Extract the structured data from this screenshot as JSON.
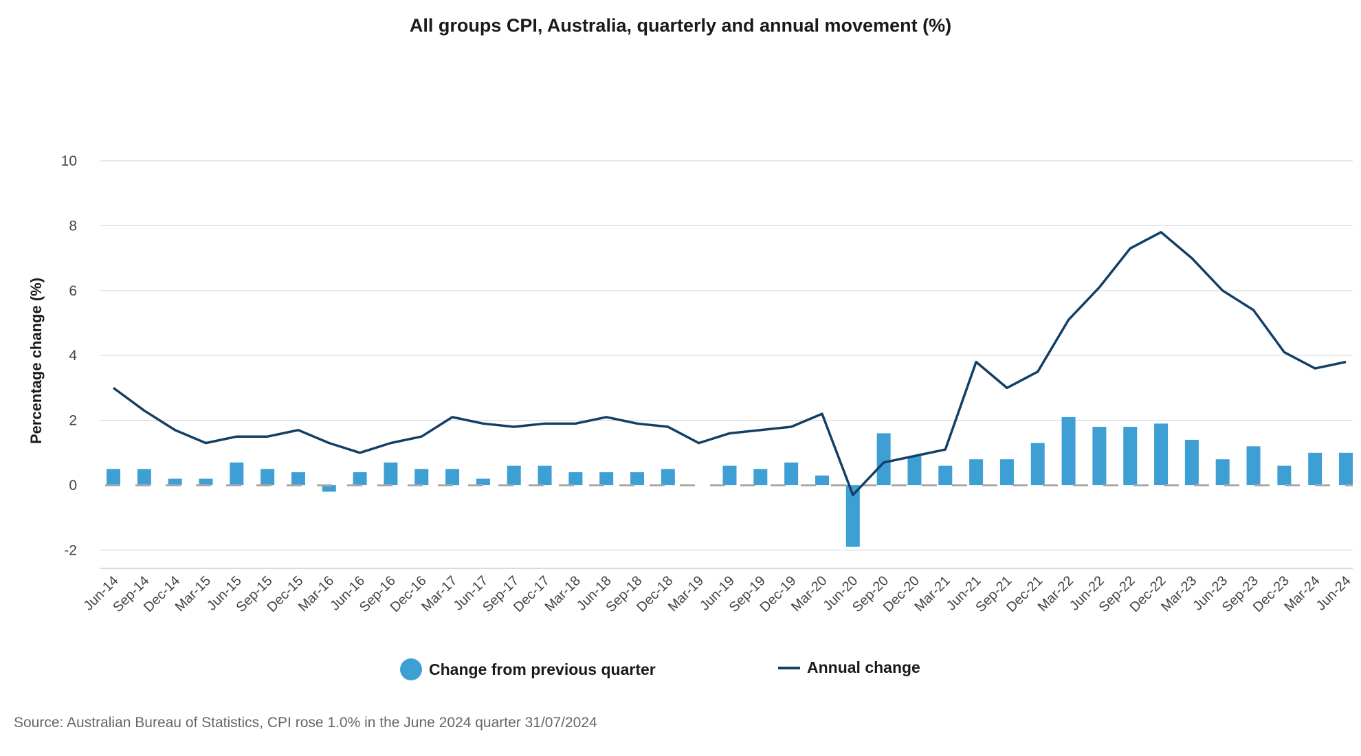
{
  "chart_data": {
    "type": "bar+line",
    "title": "All groups CPI, Australia, quarterly and annual movement (%)",
    "xlabel": "",
    "ylabel": "Percentage change (%)",
    "ylim": [
      -2.5,
      10
    ],
    "yticks": [
      -2,
      0,
      2,
      4,
      6,
      8,
      10
    ],
    "ytick_labels": [
      "-2",
      "0",
      "2",
      "4",
      "6",
      "8",
      "10"
    ],
    "grid": true,
    "categories": [
      "Jun-14",
      "Sep-14",
      "Dec-14",
      "Mar-15",
      "Jun-15",
      "Sep-15",
      "Dec-15",
      "Mar-16",
      "Jun-16",
      "Sep-16",
      "Dec-16",
      "Mar-17",
      "Jun-17",
      "Sep-17",
      "Dec-17",
      "Mar-18",
      "Jun-18",
      "Sep-18",
      "Dec-18",
      "Mar-19",
      "Jun-19",
      "Sep-19",
      "Dec-19",
      "Mar-20",
      "Jun-20",
      "Sep-20",
      "Dec-20",
      "Mar-21",
      "Jun-21",
      "Sep-21",
      "Dec-21",
      "Mar-22",
      "Jun-22",
      "Sep-22",
      "Dec-22",
      "Mar-23",
      "Jun-23",
      "Sep-23",
      "Dec-23",
      "Mar-24",
      "Jun-24"
    ],
    "series": [
      {
        "name": "Change from previous quarter",
        "type": "bar",
        "color": "#3d9fd3",
        "values": [
          0.5,
          0.5,
          0.2,
          0.2,
          0.7,
          0.5,
          0.4,
          -0.2,
          0.4,
          0.7,
          0.5,
          0.5,
          0.2,
          0.6,
          0.6,
          0.4,
          0.4,
          0.4,
          0.5,
          0.0,
          0.6,
          0.5,
          0.7,
          0.3,
          -1.9,
          1.6,
          0.9,
          0.6,
          0.8,
          0.8,
          1.3,
          2.1,
          1.8,
          1.8,
          1.9,
          1.4,
          0.8,
          1.2,
          0.6,
          1.0,
          1.0
        ]
      },
      {
        "name": "Annual change",
        "type": "line",
        "color": "#123f66",
        "values": [
          3.0,
          2.3,
          1.7,
          1.3,
          1.5,
          1.5,
          1.7,
          1.3,
          1.0,
          1.3,
          1.5,
          2.1,
          1.9,
          1.8,
          1.9,
          1.9,
          2.1,
          1.9,
          1.8,
          1.3,
          1.6,
          1.7,
          1.8,
          2.2,
          -0.3,
          0.7,
          0.9,
          1.1,
          3.8,
          3.0,
          3.5,
          5.1,
          6.1,
          7.3,
          7.8,
          7.0,
          6.0,
          5.4,
          4.1,
          3.6,
          3.8
        ]
      }
    ],
    "legend": {
      "position": "bottom",
      "bar_label": "Change from previous quarter",
      "line_label": "Annual change"
    }
  },
  "source_note": "Source: Australian Bureau of Statistics, CPI rose 1.0% in the June 2024 quarter 31/07/2024"
}
